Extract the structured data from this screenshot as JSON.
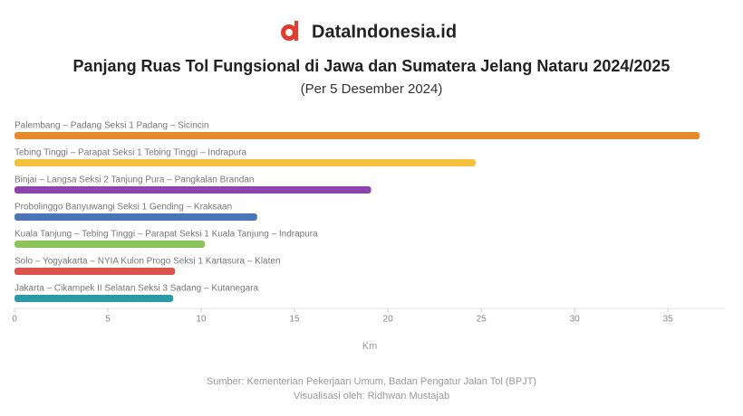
{
  "brand": "DataIndonesia.id",
  "chart_data": {
    "type": "hbar",
    "title": "Panjang Ruas Tol Fungsional di Jawa dan Sumatera Jelang Nataru 2024/2025",
    "subtitle": "(Per 5 Desember 2024)",
    "categories": [
      "Palembang – Padang Seksi 1 Padang – Sicincin",
      "Tebing Tinggi – Parapat Seksi 1 Tebing Tinggi – Indrapura",
      "Binjai – Langsa Seksi 2 Tanjung Pura – Pangkalan Brandan",
      "Probolinggo Banyuwangi Seksi 1 Gending – Kraksaan",
      "Kuala Tanjung – Tebing Tinggi – Parapat Seksi 1 Kuala Tanjung – Indrapura",
      "Solo – Yogyakarta – NYIA Kulon Progo Seksi 1 Kartasura – Klaten",
      "Jakarta – Cikampek II Selatan Seksi 3 Sadang – Kutanegara"
    ],
    "values": [
      36.7,
      24.7,
      19.1,
      13.0,
      10.2,
      8.6,
      8.5
    ],
    "colors": [
      "#e8892b",
      "#f3c13a",
      "#8e44ad",
      "#4a76b8",
      "#8cc45a",
      "#d9534f",
      "#2a9aa6"
    ],
    "xlim": [
      0,
      38
    ],
    "xticks": [
      0,
      5,
      10,
      15,
      20,
      25,
      30,
      35
    ],
    "xlabel": "Km",
    "source": "Sumber: Kementerian Pekerjaan Umum, Badan Pengatur Jalan Tol (BPJT)",
    "credit": "Visualisasi oleh: Ridhwan Mustajab"
  }
}
